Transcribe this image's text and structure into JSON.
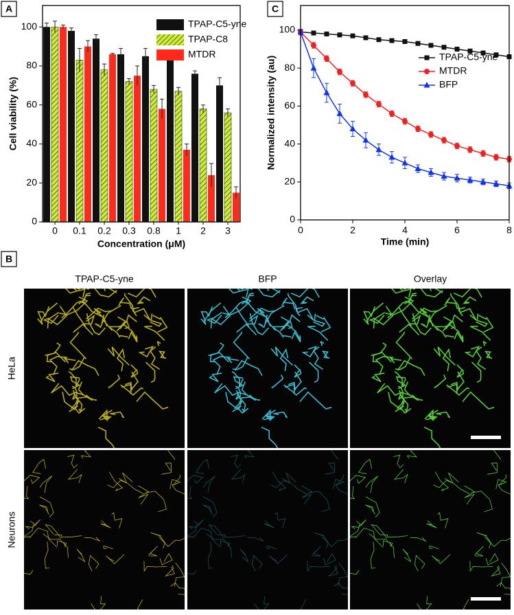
{
  "chart_data": [
    {
      "type": "bar",
      "panel_label": "A",
      "xlabel": "Concentration (μM)",
      "ylabel": "Cell viability (%)",
      "categories": [
        "0",
        "0.1",
        "0.2",
        "0.3",
        "0.8",
        "1",
        "2",
        "3"
      ],
      "series": [
        {
          "name": "TPAP-C5-yne",
          "color": "#111111",
          "hatch": false,
          "values": [
            100,
            98,
            94,
            86,
            85,
            85,
            76,
            70
          ],
          "errors": [
            2,
            1.5,
            2,
            3,
            4,
            3,
            1.5,
            4
          ]
        },
        {
          "name": "TPAP-C8",
          "color": "#ccee33",
          "hatch": true,
          "values": [
            100,
            83,
            78,
            72,
            68,
            67,
            58,
            56
          ],
          "errors": [
            3,
            6,
            3,
            1.5,
            2,
            2,
            2,
            2
          ]
        },
        {
          "name": "MTDR",
          "color": "#ff2a1a",
          "hatch": false,
          "values": [
            100,
            90,
            86,
            75,
            58,
            37,
            24,
            15
          ],
          "errors": [
            1,
            3,
            0.5,
            5,
            5,
            3,
            6,
            3
          ]
        }
      ],
      "ylim": [
        0,
        111
      ],
      "yticks": [
        0,
        20,
        40,
        60,
        80,
        100
      ],
      "legend": "top-right"
    },
    {
      "type": "line",
      "panel_label": "C",
      "xlabel": "Time (min)",
      "ylabel": "Normalized intensity (au)",
      "x": [
        0,
        0.5,
        1,
        1.5,
        2,
        2.5,
        3,
        3.5,
        4,
        4.5,
        5,
        5.5,
        6,
        6.5,
        7,
        7.5,
        8
      ],
      "series": [
        {
          "name": "TPAP-C5-yne",
          "color": "#111111",
          "marker": "square",
          "values": [
            99,
            98.5,
            98,
            97.5,
            97,
            96,
            95,
            94.5,
            94,
            93,
            92,
            91,
            90,
            89,
            88,
            87,
            86
          ],
          "errors": [
            0.5,
            0.5,
            0.5,
            0.5,
            0.5,
            0.5,
            0.5,
            0.5,
            0.5,
            0.5,
            0.5,
            0.5,
            0.5,
            0.5,
            0.5,
            0.5,
            0.5
          ]
        },
        {
          "name": "MTDR",
          "color": "#ee2222",
          "marker": "circle",
          "values": [
            99,
            92,
            85,
            78,
            72,
            66,
            61,
            56,
            52,
            48,
            45,
            42,
            39,
            37,
            35,
            33,
            32
          ],
          "errors": [
            1.5,
            1.5,
            1.5,
            1.5,
            1.5,
            1.5,
            1.5,
            1.5,
            1.5,
            1.5,
            1.5,
            1.5,
            1.5,
            1.5,
            1.5,
            1.5,
            1.5
          ]
        },
        {
          "name": "BFP",
          "color": "#1133ee",
          "marker": "triangle",
          "values": [
            99,
            80,
            67,
            56,
            48,
            42,
            37,
            33,
            30,
            27,
            25,
            23,
            22,
            21,
            20,
            19,
            18
          ],
          "errors": [
            1,
            5,
            5,
            5,
            4,
            4,
            3,
            3,
            3,
            2,
            2,
            2,
            2,
            1.5,
            1.5,
            1.5,
            1.5
          ]
        }
      ],
      "xlim": [
        0,
        8
      ],
      "xticks": [
        0,
        2,
        4,
        6,
        8
      ],
      "ylim": [
        0,
        113
      ],
      "yticks": [
        0,
        20,
        40,
        60,
        80,
        100
      ],
      "legend": "right"
    }
  ],
  "panel_b": {
    "label": "B",
    "columns": [
      "TPAP-C5-yne",
      "BFP",
      "Overlay"
    ],
    "rows": [
      "HeLa",
      "Neurons"
    ]
  }
}
